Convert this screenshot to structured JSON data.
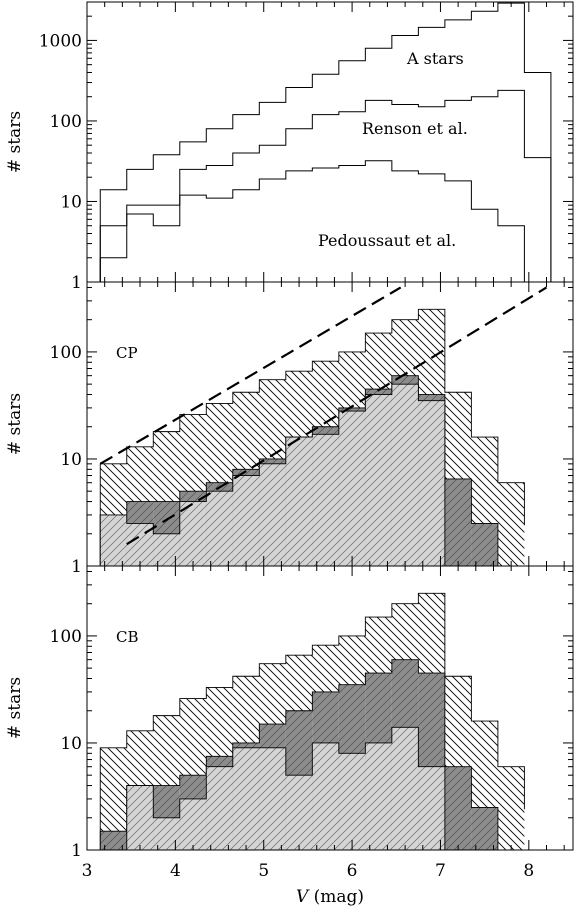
{
  "chart_data": [
    {
      "type": "area",
      "panel": "top",
      "ylabel": "# stars",
      "yscale": "log",
      "ylim": [
        1,
        3000
      ],
      "xlim": [
        3.0,
        8.5
      ],
      "yticks": [
        "1",
        "10",
        "100",
        "1000"
      ],
      "x_edges": [
        3.15,
        3.45,
        3.75,
        4.05,
        4.35,
        4.65,
        4.95,
        5.25,
        5.55,
        5.85,
        6.15,
        6.45,
        6.75,
        7.05,
        7.35,
        7.65,
        7.95,
        8.25
      ],
      "series": [
        {
          "name": "A stars",
          "values": [
            14,
            25,
            38,
            55,
            80,
            120,
            170,
            260,
            380,
            560,
            800,
            1150,
            1450,
            1800,
            2300,
            2900,
            400
          ]
        },
        {
          "name": "Renson et al.",
          "values": [
            5,
            9,
            9,
            25,
            28,
            40,
            50,
            80,
            120,
            130,
            180,
            160,
            150,
            180,
            200,
            240,
            35
          ]
        },
        {
          "name": "Pedoussaut et al.",
          "values": [
            2,
            7,
            5,
            12,
            11,
            14,
            19,
            24,
            26,
            28,
            32,
            24,
            22,
            18,
            8,
            5,
            1
          ]
        }
      ]
    },
    {
      "type": "area",
      "panel": "middle",
      "label": "CP",
      "ylabel": "# stars",
      "yscale": "log",
      "ylim": [
        1,
        450
      ],
      "xlim": [
        3.0,
        8.5
      ],
      "yticks": [
        "1",
        "10",
        "100"
      ],
      "x_edges": [
        3.15,
        3.45,
        3.75,
        4.05,
        4.35,
        4.65,
        4.95,
        5.25,
        5.55,
        5.85,
        6.15,
        6.45,
        6.75,
        7.05,
        7.35,
        7.65,
        7.95
      ],
      "series": [
        {
          "name": "total",
          "fill": "hatched-white",
          "values": [
            9,
            13,
            18,
            26,
            33,
            42,
            55,
            66,
            82,
            100,
            150,
            200,
            250,
            42,
            16,
            6,
            2.4
          ]
        },
        {
          "name": "dark",
          "fill": "#8c8c8c",
          "values": [
            3,
            4,
            4,
            5,
            6,
            8,
            10,
            16,
            20,
            30,
            45,
            60,
            40,
            6.5,
            2.5,
            0,
            0
          ]
        },
        {
          "name": "light",
          "fill": "#d4d4d4",
          "values": [
            3,
            2.5,
            2,
            4,
            5,
            7,
            9,
            16,
            17,
            28,
            40,
            50,
            35,
            0,
            0,
            0,
            0
          ]
        }
      ],
      "lines": [
        {
          "x": [
            3.15,
            6.55
          ],
          "y": [
            9,
            400
          ]
        },
        {
          "x": [
            3.45,
            8.2
          ],
          "y": [
            1.6,
            400
          ]
        }
      ]
    },
    {
      "type": "area",
      "panel": "bottom",
      "label": "CB",
      "ylabel": "# stars",
      "xlabel": "V (mag)",
      "yscale": "log",
      "ylim": [
        1,
        450
      ],
      "xlim": [
        3.0,
        8.5
      ],
      "yticks": [
        "1",
        "10",
        "100"
      ],
      "xticks": [
        "3",
        "4",
        "5",
        "6",
        "7",
        "8"
      ],
      "x_edges": [
        3.15,
        3.45,
        3.75,
        4.05,
        4.35,
        4.65,
        4.95,
        5.25,
        5.55,
        5.85,
        6.15,
        6.45,
        6.75,
        7.05,
        7.35,
        7.65,
        7.95
      ],
      "series": [
        {
          "name": "total",
          "fill": "hatched-white",
          "values": [
            9,
            13,
            18,
            26,
            33,
            42,
            55,
            66,
            82,
            100,
            150,
            200,
            250,
            42,
            16,
            6,
            2.4
          ]
        },
        {
          "name": "dark",
          "fill": "#8c8c8c",
          "values": [
            1.5,
            4,
            4,
            5,
            7.5,
            10,
            15,
            20,
            30,
            35,
            45,
            60,
            45,
            6,
            2.5,
            0,
            0
          ]
        },
        {
          "name": "light",
          "fill": "#d4d4d4",
          "values": [
            1.0,
            4,
            2,
            3,
            6,
            9,
            9,
            5,
            10,
            8,
            10,
            14,
            6,
            0,
            0,
            0,
            0
          ]
        }
      ]
    }
  ]
}
